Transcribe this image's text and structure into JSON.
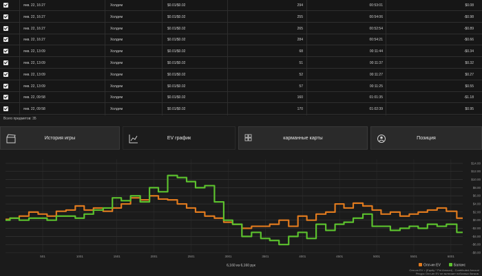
{
  "table": {
    "rows": [
      {
        "date": "янв. 22, 16:27",
        "game": "Холдем",
        "stakes": "$0.01/$0.02",
        "hands": "294",
        "duration": "00:53:01",
        "result": "$0.08"
      },
      {
        "date": "янв. 22, 16:27",
        "game": "Холдем",
        "stakes": "$0.01/$0.02",
        "hands": "255",
        "duration": "00:54:06",
        "result": "-$0.98"
      },
      {
        "date": "янв. 22, 16:27",
        "game": "Холдем",
        "stakes": "$0.01/$0.02",
        "hands": "265",
        "duration": "00:52:54",
        "result": "-$0.89"
      },
      {
        "date": "янв. 22, 16:27",
        "game": "Холдем",
        "stakes": "$0.01/$0.02",
        "hands": "284",
        "duration": "00:54:21",
        "result": "-$0.66"
      },
      {
        "date": "янв. 22, 13:09",
        "game": "Холдем",
        "stakes": "$0.01/$0.02",
        "hands": "68",
        "duration": "00:11:44",
        "result": "-$0.34"
      },
      {
        "date": "янв. 22, 13:09",
        "game": "Холдем",
        "stakes": "$0.01/$0.02",
        "hands": "51",
        "duration": "00:11:37",
        "result": "$0.32"
      },
      {
        "date": "янв. 22, 13:09",
        "game": "Холдем",
        "stakes": "$0.01/$0.02",
        "hands": "52",
        "duration": "00:11:27",
        "result": "$0.27"
      },
      {
        "date": "янв. 22, 13:09",
        "game": "Холдем",
        "stakes": "$0.01/$0.02",
        "hands": "57",
        "duration": "00:11:25",
        "result": "$0.55"
      },
      {
        "date": "янв. 22, 09:58",
        "game": "Холдем",
        "stakes": "$0.01/$0.02",
        "hands": "160",
        "duration": "01:01:35",
        "result": "-$1.18"
      },
      {
        "date": "янв. 22, 09:58",
        "game": "Холдем",
        "stakes": "$0.01/$0.02",
        "hands": "170",
        "duration": "01:02:39",
        "result": "$0.95"
      }
    ],
    "total_label": "Всего предметов: 35"
  },
  "tabs": [
    {
      "label": "История игры",
      "icon": "clapperboard-icon"
    },
    {
      "label": "EV график",
      "icon": "chart-line-icon"
    },
    {
      "label": "карманные карты",
      "icon": "grid-icon"
    },
    {
      "label": "Позиция",
      "icon": "position-icon"
    }
  ],
  "colors": {
    "ev": "#e07a1e",
    "balance": "#5cc22e",
    "grid": "#3a3a3a",
    "bg": "#1b1b1b"
  },
  "chart_data": {
    "type": "line",
    "ylim": [
      -8,
      15
    ],
    "ytick_labels": [
      "$14.00",
      "$12.00",
      "$10.00",
      "$8.00",
      "$6.00",
      "$4.00",
      "$2.00",
      "$0.00",
      "-$2.00",
      "-$4.00",
      "-$6.00",
      "-$8.00"
    ],
    "ytick_values": [
      14,
      12,
      10,
      8,
      6,
      4,
      2,
      0,
      -2,
      -4,
      -6,
      -8
    ],
    "xlim": [
      0,
      6160
    ],
    "xtick_labels": [
      "501",
      "1001",
      "1501",
      "2001",
      "2501",
      "3001",
      "3501",
      "4001",
      "4501",
      "5001",
      "5501",
      "6001"
    ],
    "xtick_values": [
      501,
      1001,
      1501,
      2001,
      2501,
      3001,
      3501,
      4001,
      4501,
      5001,
      5501,
      6001
    ],
    "xlabel": "6,160 из 6,160 рук",
    "legend_position": "bottom-right",
    "grid": true,
    "series": [
      {
        "name": "Олл-ин EV",
        "color": "#e07a1e",
        "x": [
          0,
          120,
          250,
          380,
          500,
          620,
          750,
          880,
          1000,
          1120,
          1250,
          1380,
          1500,
          1620,
          1750,
          1880,
          2000,
          2120,
          2250,
          2380,
          2500,
          2620,
          2750,
          2880,
          3000,
          3120,
          3250,
          3380,
          3500,
          3620,
          3750,
          3880,
          4000,
          4120,
          4250,
          4380,
          4500,
          4620,
          4750,
          4880,
          5000,
          5120,
          5250,
          5380,
          5500,
          5620,
          5750,
          5880,
          6000,
          6160
        ],
        "values": [
          0.2,
          0.5,
          1.0,
          2.0,
          1.5,
          1.0,
          2.2,
          2.5,
          3.5,
          2.5,
          3.0,
          2.2,
          3.0,
          4.0,
          5.5,
          5.0,
          6.0,
          5.2,
          5.0,
          4.0,
          3.0,
          2.0,
          1.0,
          0.5,
          -0.5,
          -1.0,
          -2.0,
          -1.5,
          -1.5,
          -1.0,
          0.0,
          -1.5,
          1.0,
          0.0,
          1.5,
          2.0,
          4.0,
          3.0,
          4.2,
          3.5,
          2.5,
          1.5,
          2.0,
          1.0,
          1.5,
          2.0,
          2.5,
          3.0,
          2.2,
          0.5
        ]
      },
      {
        "name": "Баланс",
        "color": "#5cc22e",
        "x": [
          0,
          120,
          250,
          380,
          500,
          620,
          750,
          880,
          1000,
          1120,
          1250,
          1380,
          1500,
          1620,
          1750,
          1880,
          2000,
          2120,
          2250,
          2380,
          2500,
          2620,
          2750,
          2880,
          3000,
          3120,
          3250,
          3380,
          3500,
          3620,
          3750,
          3880,
          4000,
          4120,
          4250,
          4380,
          4500,
          4620,
          4750,
          4880,
          5000,
          5120,
          5250,
          5380,
          5500,
          5620,
          5750,
          5880,
          6000,
          6160
        ],
        "values": [
          0.0,
          0.5,
          0.0,
          0.5,
          0.5,
          0.0,
          1.0,
          1.0,
          0.5,
          1.5,
          2.5,
          3.0,
          5.5,
          4.8,
          6.0,
          4.5,
          8.0,
          7.0,
          11.0,
          10.5,
          9.5,
          8.0,
          8.5,
          4.5,
          0.0,
          -1.0,
          -4.0,
          -3.0,
          -4.5,
          -5.0,
          -6.0,
          -4.0,
          -3.0,
          -4.5,
          -1.0,
          -2.5,
          -1.0,
          -0.5,
          0.5,
          1.5,
          -1.5,
          -1.5,
          -2.5,
          -2.0,
          -1.5,
          -2.0,
          -1.0,
          -1.5,
          -1.0,
          -3.0
        ]
      }
    ],
    "footer_note_1": "Олл-ин EV = (Equity * Pot Amount) - Contributed Amount",
    "footer_note_2": "Ресурс Олл-ин EV не включает побочных банков."
  }
}
